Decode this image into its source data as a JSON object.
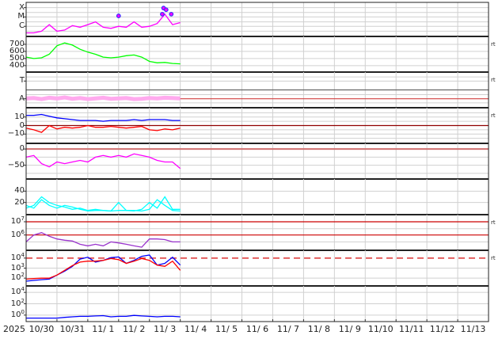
{
  "chart_data": {
    "type": "line",
    "x_axis": {
      "year_label": "2025",
      "start": "2025-10-30T00:00",
      "end": "2025-11-14T00:00",
      "tick_labels": [
        "10/30",
        "10/31",
        "11/ 1",
        "11/ 2",
        "11/ 3",
        "11/ 4",
        "11/ 5",
        "11/ 6",
        "11/ 7",
        "11/ 8",
        "11/ 9",
        "11/10",
        "11/11",
        "11/12",
        "11/13"
      ]
    },
    "sample_times": [
      "2025-10-30T00",
      "2025-10-30T06",
      "2025-10-30T12",
      "2025-10-30T18",
      "2025-10-31T00",
      "2025-10-31T06",
      "2025-10-31T12",
      "2025-10-31T18",
      "2025-11-01T00",
      "2025-11-01T06",
      "2025-11-01T12",
      "2025-11-01T18",
      "2025-11-02T00",
      "2025-11-02T06",
      "2025-11-02T12",
      "2025-11-02T18",
      "2025-11-03T00",
      "2025-11-03T06",
      "2025-11-03T12",
      "2025-11-03T18",
      "2025-11-04T00"
    ],
    "panels": [
      {
        "scale": "log",
        "ylim": [
          1e-07,
          0.0003
        ],
        "ticks": [
          {
            "v": 1e-06,
            "label": "C"
          },
          {
            "v": 1e-05,
            "label": "M"
          },
          {
            "v": 0.0001,
            "label": "X"
          }
        ],
        "grid": [
          3e-07,
          1e-06,
          3e-06,
          1e-05,
          3e-05,
          0.0001
        ],
        "series": [
          {
            "color": "#ff00ff",
            "values": [
              2e-07,
              2e-07,
              3e-07,
              1.5e-06,
              3e-07,
              4e-07,
              1.2e-06,
              8e-07,
              1.5e-06,
              3e-06,
              8e-07,
              6e-07,
              1e-06,
              8e-07,
              3e-06,
              8e-07,
              1e-06,
              2e-06,
              2e-05,
              1.5e-06,
              2.5e-06
            ]
          }
        ],
        "markers": [
          {
            "time": "2025-11-02T00",
            "value": 1.3e-05
          },
          {
            "time": "2025-11-03T10",
            "value": 2e-05
          },
          {
            "time": "2025-11-03T11",
            "value": 9e-05
          },
          {
            "time": "2025-11-03T13",
            "value": 6e-05
          },
          {
            "time": "2025-11-03T17",
            "value": 2e-05
          }
        ],
        "marker_color": "#3333ff",
        "right_label": ""
      },
      {
        "scale": "linear",
        "ylim": [
          320,
          800
        ],
        "ticks": [
          {
            "v": 400,
            "label": "400"
          },
          {
            "v": 500,
            "label": "500"
          },
          {
            "v": 600,
            "label": "600"
          },
          {
            "v": 700,
            "label": "700"
          }
        ],
        "grid": [
          400,
          500,
          600,
          700
        ],
        "series": [
          {
            "color": "#00ff00",
            "values": [
              520,
              500,
              510,
              560,
              680,
              720,
              690,
              630,
              590,
              560,
              520,
              510,
              520,
              540,
              550,
              520,
              460,
              440,
              445,
              430,
              425
            ]
          }
        ],
        "right_label": "rt"
      },
      {
        "scale": "linear",
        "ylim": [
          0,
          10
        ],
        "ticks": [
          {
            "v": 7.6,
            "label": "T"
          },
          {
            "v": 2.4,
            "label": "A"
          }
        ],
        "grid": [
          1.2,
          3.6,
          7.6,
          8.8
        ],
        "refline": {
          "v": 5.0,
          "color": "#666666"
        },
        "refline2": {
          "v": 2.4,
          "color": "#d04040"
        },
        "series": [
          {
            "color": "#ffaaee",
            "width": 5,
            "values": [
              2.5,
              2.6,
              2.3,
              2.7,
              2.5,
              2.8,
              2.4,
              2.6,
              2.3,
              2.5,
              2.7,
              2.4,
              2.5,
              2.6,
              2.3,
              2.4,
              2.6,
              2.5,
              2.7,
              2.6,
              2.5
            ]
          }
        ],
        "right_label": "rt"
      },
      {
        "scale": "linear",
        "ylim": [
          -20,
          20
        ],
        "ticks": [
          {
            "v": 10,
            "label": "10"
          },
          {
            "v": 0,
            "label": "0"
          },
          {
            "v": -10,
            "label": "−10"
          }
        ],
        "grid": [
          -15,
          -10,
          -5,
          5,
          10,
          15
        ],
        "refline": {
          "v": 0,
          "color": "#900000"
        },
        "series": [
          {
            "color": "#0000ff",
            "values": [
              12,
              12,
              13,
              11,
              9,
              8,
              7,
              6,
              6,
              6,
              5,
              6,
              6,
              6,
              7,
              6,
              7,
              7,
              7,
              6,
              6
            ]
          },
          {
            "color": "#ff0000",
            "values": [
              -3,
              -5,
              -8,
              0,
              -4,
              -2,
              -3,
              -2,
              0,
              -2,
              -2,
              -1,
              -2,
              -3,
              -2,
              -1,
              -5,
              -6,
              -4,
              -5,
              -3
            ]
          }
        ],
        "right_label": "rt"
      },
      {
        "scale": "linear",
        "ylim": [
          -90,
          15
        ],
        "ticks": [
          {
            "v": 0,
            "label": "0"
          },
          {
            "v": -50,
            "label": "−50"
          }
        ],
        "grid": [
          -25,
          -50,
          -75
        ],
        "refline": {
          "v": 0,
          "color": "#d07070"
        },
        "series": [
          {
            "color": "#ff00ff",
            "values": [
              -25,
              -20,
              -45,
              -55,
              -40,
              -45,
              -40,
              -35,
              -40,
              -25,
              -20,
              -25,
              -20,
              -25,
              -15,
              -20,
              -25,
              -35,
              -40,
              -40,
              -60
            ]
          }
        ],
        "right_label": ""
      },
      {
        "scale": "linear",
        "ylim": [
          0,
          60
        ],
        "ticks": [
          {
            "v": 40,
            "label": "40"
          },
          {
            "v": 20,
            "label": "20"
          }
        ],
        "grid": [
          20,
          40
        ],
        "series": [
          {
            "color": "#00ffff",
            "values": [
              10,
              15,
              30,
              20,
              15,
              12,
              8,
              10,
              6,
              8,
              6,
              5,
              6,
              6,
              5,
              8,
              20,
              10,
              30,
              8,
              8
            ]
          },
          {
            "color": "#00ffff",
            "values": [
              15,
              10,
              25,
              15,
              10,
              15,
              12,
              8,
              5,
              6,
              6,
              5,
              20,
              6,
              6,
              5,
              8,
              25,
              15,
              6,
              5
            ]
          }
        ],
        "right_label": ""
      },
      {
        "scale": "log",
        "ylim": [
          80000.0,
          30000000.0
        ],
        "ticks": [
          {
            "v": 10000000.0,
            "label": "10",
            "exp": "7"
          },
          {
            "v": 1000000.0,
            "label": "10",
            "exp": "6"
          }
        ],
        "grid": [
          300000.0,
          3000000.0
        ],
        "refline": {
          "v": 10000000.0,
          "color": "#cc0000"
        },
        "refline2": {
          "v": 1000000.0,
          "color": "#cc0000"
        },
        "series": [
          {
            "color": "#9933cc",
            "values": [
              300000.0,
              1000000.0,
              1500000.0,
              800000.0,
              500000.0,
              400000.0,
              350000.0,
              200000.0,
              150000.0,
              200000.0,
              150000.0,
              300000.0,
              250000.0,
              200000.0,
              150000.0,
              120000.0,
              500000.0,
              500000.0,
              450000.0,
              300000.0,
              300000.0
            ]
          }
        ],
        "right_label": "rt"
      },
      {
        "scale": "log",
        "ylim": [
          20,
          50000.0
        ],
        "ticks": [
          {
            "v": 10000.0,
            "label": "10",
            "exp": "4"
          },
          {
            "v": 1000.0,
            "label": "10",
            "exp": "3"
          },
          {
            "v": 100.0,
            "label": "10",
            "exp": "2"
          }
        ],
        "grid": [
          100.0,
          1000.0
        ],
        "refline": {
          "v": 10000.0,
          "color": "#dd3333",
          "dashed": true
        },
        "series": [
          {
            "color": "#0000ff",
            "values": [
              50,
              60,
              70,
              80,
              200,
              500,
              1500,
              8000,
              12000,
              4000,
              6000,
              11000,
              13000,
              3000,
              6000,
              15000,
              20000,
              2000,
              3000,
              12000,
              2000
            ]
          },
          {
            "color": "#ff0000",
            "values": [
              80,
              90,
              100,
              100,
              200,
              600,
              1800,
              4000,
              5000,
              5000,
              6000,
              9000,
              7000,
              3000,
              5000,
              9000,
              6000,
              2000,
              1500,
              5000,
              600
            ]
          }
        ],
        "right_label": "rt"
      },
      {
        "scale": "log",
        "ylim": [
          0.1,
          100000.0
        ],
        "ticks": [
          {
            "v": 10000.0,
            "label": "10",
            "exp": "4"
          },
          {
            "v": 100.0,
            "label": "10",
            "exp": "2"
          },
          {
            "v": 1,
            "label": "10",
            "exp": "0"
          }
        ],
        "grid": [
          1,
          100,
          10000.0
        ],
        "series": [
          {
            "color": "#0000ff",
            "values": [
              0.3,
              0.3,
              0.3,
              0.3,
              0.3,
              0.4,
              0.5,
              0.6,
              0.6,
              0.7,
              0.8,
              0.5,
              0.6,
              0.6,
              0.9,
              0.7,
              0.6,
              0.5,
              0.6,
              0.6,
              0.5
            ]
          }
        ],
        "right_label": ""
      }
    ]
  }
}
